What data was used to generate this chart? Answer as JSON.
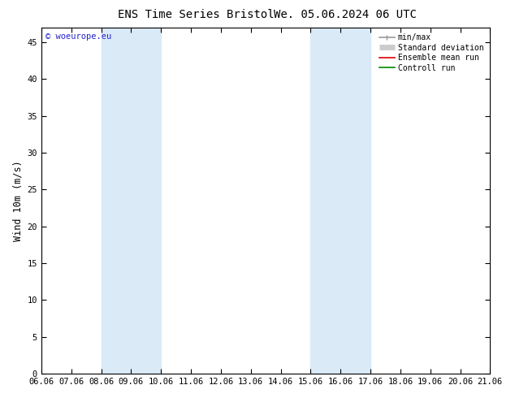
{
  "title": "ENS Time Series Bristol",
  "title2": "We. 05.06.2024 06 UTC",
  "ylabel": "Wind 10m (m/s)",
  "ylim": [
    0,
    47
  ],
  "yticks": [
    0,
    5,
    10,
    15,
    20,
    25,
    30,
    35,
    40,
    45
  ],
  "xtick_labels": [
    "06.06",
    "07.06",
    "08.06",
    "09.06",
    "10.06",
    "11.06",
    "12.06",
    "13.06",
    "14.06",
    "15.06",
    "16.06",
    "17.06",
    "18.06",
    "19.06",
    "20.06",
    "21.06"
  ],
  "xtick_positions": [
    0,
    1,
    2,
    3,
    4,
    5,
    6,
    7,
    8,
    9,
    10,
    11,
    12,
    13,
    14,
    15
  ],
  "shaded_bands": [
    {
      "xstart": 2,
      "xend": 4,
      "color": "#daeaf7"
    },
    {
      "xstart": 9,
      "xend": 11,
      "color": "#daeaf7"
    }
  ],
  "watermark": "© woeurope.eu",
  "background_color": "#ffffff",
  "plot_bg_color": "#ffffff",
  "legend_items": [
    {
      "label": "min/max",
      "color": "#999999",
      "lw": 1.2
    },
    {
      "label": "Standard deviation",
      "color": "#cccccc",
      "lw": 5
    },
    {
      "label": "Ensemble mean run",
      "color": "#dd0000",
      "lw": 1.2
    },
    {
      "label": "Controll run",
      "color": "#008800",
      "lw": 1.2
    }
  ],
  "title_fontsize": 10,
  "tick_fontsize": 7.5,
  "ylabel_fontsize": 8.5,
  "watermark_fontsize": 7.5,
  "watermark_color": "#2222cc",
  "legend_fontsize": 7
}
